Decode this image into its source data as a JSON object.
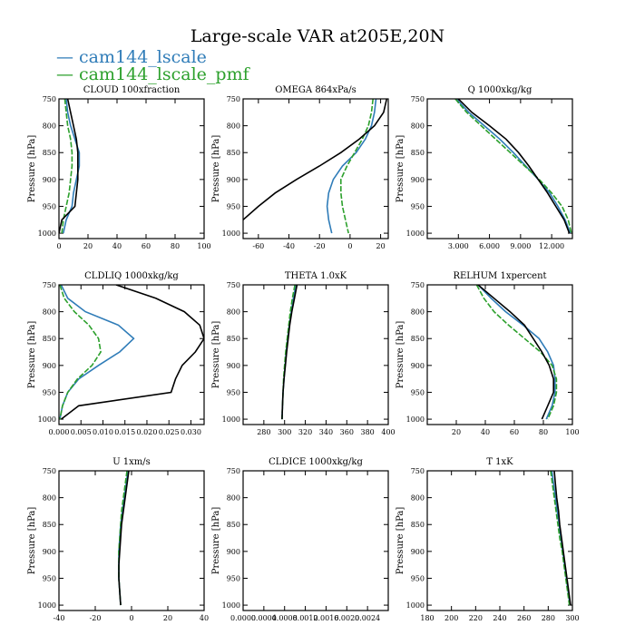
{
  "figure": {
    "title": "Large-scale VAR at205E,20N",
    "legend": [
      {
        "label": "— cam144_lscale",
        "color": "#2f7cb8"
      },
      {
        "label": "— cam144_lscale_pmf",
        "color": "#2ca02c"
      }
    ],
    "series_colors": [
      "#2f7cb8",
      "#2ca02c",
      "#000000"
    ]
  },
  "chart_data": [
    {
      "type": "line",
      "title": "CLOUD  100xfraction",
      "ylabel": "Pressure [hPa]",
      "xlim": [
        0,
        100
      ],
      "ylim": [
        1010,
        750
      ],
      "xticks": [
        0,
        20,
        40,
        60,
        80,
        100
      ],
      "xticklabels": [
        "0",
        "20",
        "40",
        "60",
        "80",
        "100"
      ],
      "yticks": [
        750,
        800,
        850,
        900,
        950,
        1000
      ],
      "series": [
        {
          "x": [
            5,
            6,
            8,
            11,
            14,
            14,
            12,
            10,
            9,
            5,
            3
          ],
          "y": [
            750,
            775,
            800,
            825,
            850,
            875,
            900,
            925,
            950,
            975,
            1000
          ]
        },
        {
          "x": [
            4,
            5,
            6,
            8,
            9,
            9,
            8,
            7,
            5,
            3,
            2
          ],
          "y": [
            750,
            775,
            800,
            825,
            850,
            875,
            900,
            925,
            950,
            975,
            1000
          ]
        },
        {
          "x": [
            6,
            8,
            10,
            12,
            13,
            13,
            13,
            12,
            11,
            2,
            0
          ],
          "y": [
            750,
            775,
            800,
            825,
            850,
            875,
            900,
            925,
            950,
            975,
            1000
          ]
        }
      ]
    },
    {
      "type": "line",
      "title": "OMEGA  864xPa/s",
      "ylabel": "Pressure [hPa]",
      "xlim": [
        -70,
        25
      ],
      "ylim": [
        1010,
        750
      ],
      "xticks": [
        -60,
        -40,
        -20,
        0,
        20
      ],
      "xticklabels": [
        "-60",
        "-40",
        "-20",
        "0",
        "20"
      ],
      "yticks": [
        750,
        800,
        850,
        900,
        950,
        1000
      ],
      "series": [
        {
          "x": [
            17,
            16,
            14,
            10,
            4,
            -5,
            -11,
            -14,
            -15,
            -14,
            -12
          ],
          "y": [
            750,
            775,
            800,
            825,
            850,
            875,
            900,
            925,
            950,
            975,
            1000
          ]
        },
        {
          "x": [
            15,
            14,
            12,
            8,
            3,
            -2,
            -6,
            -6,
            -5,
            -3,
            -1
          ],
          "y": [
            750,
            775,
            800,
            825,
            850,
            875,
            900,
            925,
            950,
            975,
            1000
          ]
        },
        {
          "x": [
            24,
            22,
            16,
            6,
            -6,
            -20,
            -35,
            -49,
            -60,
            -70
          ],
          "y": [
            750,
            775,
            800,
            825,
            850,
            875,
            900,
            925,
            950,
            975
          ]
        }
      ]
    },
    {
      "type": "line",
      "title": "Q  1000xkg/kg",
      "ylabel": "Pressure [hPa]",
      "xlim": [
        0,
        14
      ],
      "ylim": [
        1010,
        750
      ],
      "xticks": [
        3,
        6,
        9,
        12
      ],
      "xticklabels": [
        "3.000",
        "6.000",
        "9.000",
        "12.000"
      ],
      "yticks": [
        750,
        800,
        850,
        900,
        950,
        1000
      ],
      "series": [
        {
          "x": [
            2.8,
            4.0,
            5.5,
            7.0,
            8.3,
            9.5,
            10.7,
            11.8,
            12.6,
            13.3,
            13.8
          ],
          "y": [
            750,
            775,
            800,
            825,
            850,
            875,
            900,
            925,
            950,
            975,
            1000
          ]
        },
        {
          "x": [
            2.7,
            3.8,
            5.2,
            6.6,
            8.0,
            9.4,
            10.8,
            12.0,
            13.0,
            13.6,
            13.9
          ],
          "y": [
            750,
            775,
            800,
            825,
            850,
            875,
            900,
            925,
            950,
            975,
            1000
          ]
        },
        {
          "x": [
            3.0,
            4.3,
            6.0,
            7.6,
            8.8,
            9.8,
            10.7,
            11.6,
            12.4,
            13.2,
            13.7
          ],
          "y": [
            750,
            775,
            800,
            825,
            850,
            875,
            900,
            925,
            950,
            975,
            1000
          ]
        }
      ]
    },
    {
      "type": "line",
      "title": "CLDLIQ  1000xkg/kg",
      "ylabel": "Pressure [hPa]",
      "xlim": [
        0,
        0.033
      ],
      "ylim": [
        1010,
        750
      ],
      "xticks": [
        0,
        0.005,
        0.01,
        0.015,
        0.02,
        0.025,
        0.03
      ],
      "xticklabels": [
        "0.000",
        "0.005",
        "0.010",
        "0.015",
        "0.020",
        "0.025",
        "0.030"
      ],
      "yticks": [
        750,
        800,
        850,
        900,
        950,
        1000
      ],
      "series": [
        {
          "x": [
            0.0005,
            0.002,
            0.006,
            0.0135,
            0.017,
            0.0138,
            0.009,
            0.0045,
            0.002,
            0.0008,
            0.0002
          ],
          "y": [
            750,
            775,
            800,
            825,
            850,
            875,
            900,
            925,
            950,
            975,
            1000
          ]
        },
        {
          "x": [
            0.0002,
            0.0012,
            0.0035,
            0.0068,
            0.009,
            0.0095,
            0.0075,
            0.0042,
            0.002,
            0.0008,
            0.0002
          ],
          "y": [
            750,
            775,
            800,
            825,
            850,
            875,
            900,
            925,
            950,
            975,
            1000
          ]
        },
        {
          "x": [
            0.013,
            0.022,
            0.0285,
            0.032,
            0.033,
            0.031,
            0.028,
            0.0265,
            0.0255,
            0.0045,
            0.0005
          ],
          "y": [
            750,
            775,
            800,
            825,
            850,
            875,
            900,
            925,
            950,
            975,
            1000
          ]
        }
      ]
    },
    {
      "type": "line",
      "title": "THETA  1.0xK",
      "ylabel": "Pressure [hPa]",
      "xlim": [
        260,
        400
      ],
      "ylim": [
        1010,
        750
      ],
      "xticks": [
        280,
        300,
        320,
        340,
        360,
        380,
        400
      ],
      "xticklabels": [
        "280",
        "300",
        "320",
        "340",
        "360",
        "380",
        "400"
      ],
      "yticks": [
        750,
        800,
        850,
        900,
        950,
        1000
      ],
      "series": [
        {
          "x": [
            311,
            308.5,
            306.5,
            304.5,
            303,
            301.5,
            300.5,
            299.5,
            298.5,
            298,
            297.5
          ],
          "y": [
            750,
            775,
            800,
            825,
            850,
            875,
            900,
            925,
            950,
            975,
            1000
          ]
        },
        {
          "x": [
            310,
            307.5,
            305.5,
            304,
            302.5,
            301,
            300,
            299,
            298.5,
            298,
            297.5
          ],
          "y": [
            750,
            775,
            800,
            825,
            850,
            875,
            900,
            925,
            950,
            975,
            1000
          ]
        },
        {
          "x": [
            312,
            309.5,
            307,
            305,
            303.5,
            302,
            300.8,
            299.5,
            298.5,
            298,
            297.5
          ],
          "y": [
            750,
            775,
            800,
            825,
            850,
            875,
            900,
            925,
            950,
            975,
            1000
          ]
        }
      ]
    },
    {
      "type": "line",
      "title": "RELHUM  1xpercent",
      "ylabel": "Pressure [hPa]",
      "xlim": [
        0,
        100
      ],
      "ylim": [
        1010,
        750
      ],
      "xticks": [
        20,
        40,
        60,
        80,
        100
      ],
      "xticklabels": [
        "20",
        "40",
        "60",
        "80",
        "100"
      ],
      "yticks": [
        750,
        800,
        850,
        900,
        950,
        1000
      ],
      "series": [
        {
          "x": [
            35,
            44,
            54,
            66,
            77,
            83,
            87,
            88,
            88,
            86,
            82
          ],
          "y": [
            750,
            775,
            800,
            825,
            850,
            875,
            900,
            925,
            950,
            975,
            1000
          ]
        },
        {
          "x": [
            34,
            39,
            46,
            56,
            67,
            78,
            86,
            89,
            89,
            87,
            83
          ],
          "y": [
            750,
            775,
            800,
            825,
            850,
            875,
            900,
            925,
            950,
            975,
            1000
          ]
        },
        {
          "x": [
            35,
            46,
            57,
            67,
            73,
            79,
            84,
            87,
            87,
            83,
            79
          ],
          "y": [
            750,
            775,
            800,
            825,
            850,
            875,
            900,
            925,
            950,
            975,
            1000
          ]
        }
      ]
    },
    {
      "type": "line",
      "title": "U  1xm/s",
      "ylabel": "Pressure [hPa]",
      "xlim": [
        -40,
        40
      ],
      "ylim": [
        1010,
        750
      ],
      "xticks": [
        -40,
        -20,
        0,
        20,
        40
      ],
      "xticklabels": [
        "-40",
        "-20",
        "0",
        "20",
        "40"
      ],
      "yticks": [
        750,
        800,
        850,
        900,
        950,
        1000
      ],
      "series": [
        {
          "x": [
            -2,
            -3,
            -4,
            -5,
            -6,
            -6.5,
            -7,
            -7,
            -7,
            -6.5,
            -6
          ],
          "y": [
            750,
            775,
            800,
            825,
            850,
            875,
            900,
            925,
            950,
            975,
            1000
          ]
        },
        {
          "x": [
            -2.5,
            -3.5,
            -4.5,
            -5.5,
            -6,
            -6.5,
            -7,
            -7,
            -7,
            -6.5,
            -6
          ],
          "y": [
            750,
            775,
            800,
            825,
            850,
            875,
            900,
            925,
            950,
            975,
            1000
          ]
        },
        {
          "x": [
            -1.5,
            -2.5,
            -3.5,
            -4.5,
            -5.5,
            -6,
            -6.5,
            -7,
            -7,
            -6.5,
            -6
          ],
          "y": [
            750,
            775,
            800,
            825,
            850,
            875,
            900,
            925,
            950,
            975,
            1000
          ]
        }
      ]
    },
    {
      "type": "line",
      "title": "CLDICE  1000xkg/kg",
      "ylabel": "Pressure [hPa]",
      "xlim": [
        0,
        0.0028
      ],
      "ylim": [
        1010,
        750
      ],
      "xticks": [
        0,
        0.0004,
        0.0008,
        0.0012,
        0.0016,
        0.002,
        0.0024
      ],
      "xticklabels": [
        "0.0000",
        "0.0004",
        "0.0008",
        "0.0012",
        "0.0016",
        "0.0020",
        "0.0024"
      ],
      "yticks": [
        750,
        800,
        850,
        900,
        950,
        1000
      ],
      "series": []
    },
    {
      "type": "line",
      "title": "T  1xK",
      "ylabel": "Pressure [hPa]",
      "xlim": [
        180,
        300
      ],
      "ylim": [
        1010,
        750
      ],
      "xticks": [
        180,
        200,
        220,
        240,
        260,
        280,
        300
      ],
      "xticklabels": [
        "180",
        "200",
        "220",
        "240",
        "260",
        "280",
        "300"
      ],
      "yticks": [
        750,
        800,
        850,
        900,
        950,
        1000
      ],
      "series": [
        {
          "x": [
            283,
            284.5,
            286,
            287.5,
            289,
            290.5,
            292,
            293.5,
            295,
            296.5,
            298
          ],
          "y": [
            750,
            775,
            800,
            825,
            850,
            875,
            900,
            925,
            950,
            975,
            1000
          ]
        },
        {
          "x": [
            282,
            283.5,
            285,
            286.5,
            288,
            289.5,
            291.5,
            293,
            294.5,
            296,
            297.5
          ],
          "y": [
            750,
            775,
            800,
            825,
            850,
            875,
            900,
            925,
            950,
            975,
            1000
          ]
        },
        {
          "x": [
            285,
            286,
            287,
            288.5,
            289.5,
            291,
            292.5,
            294,
            295.5,
            297,
            298.5
          ],
          "y": [
            750,
            775,
            800,
            825,
            850,
            875,
            900,
            925,
            950,
            975,
            1000
          ]
        }
      ]
    }
  ]
}
